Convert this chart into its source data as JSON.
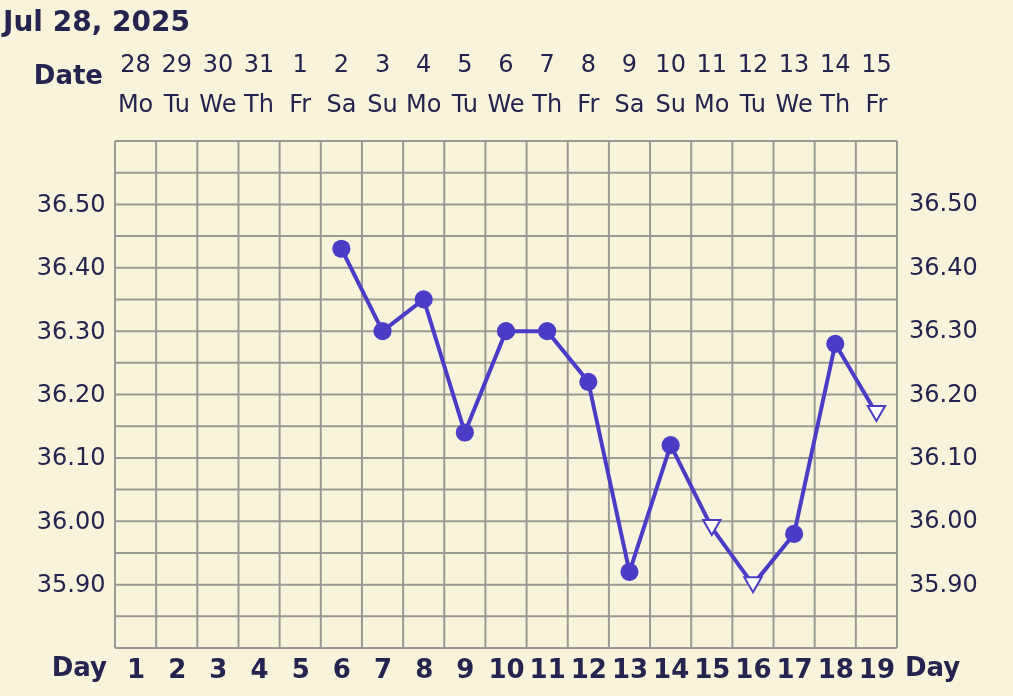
{
  "chart_data": {
    "type": "line",
    "title": "Jul 28, 2025",
    "xlabel": "Day",
    "x2label": "Date",
    "x": [
      6,
      7,
      8,
      9,
      10,
      11,
      12,
      13,
      14,
      15,
      16,
      17,
      18,
      19
    ],
    "series": [
      {
        "color": "#4a3cc6",
        "marker": "none",
        "values": [
          36.43,
          36.3,
          36.35,
          36.14,
          36.3,
          36.3,
          36.22,
          35.92,
          36.12,
          35.99,
          35.9,
          35.98,
          36.28,
          36.17
        ]
      },
      {
        "type": "scatter",
        "color": "#4a3cc6",
        "marker": "circle",
        "values": [
          36.43,
          36.3,
          36.35,
          36.14,
          36.3,
          36.3,
          36.22,
          35.92,
          36.12,
          null,
          null,
          35.98,
          36.28,
          null
        ]
      },
      {
        "type": "scatter",
        "color": "#4a3cc6",
        "marker": "triangle",
        "values": [
          null,
          null,
          null,
          null,
          null,
          null,
          null,
          null,
          null,
          35.99,
          35.9,
          null,
          null,
          36.17
        ]
      }
    ],
    "xlim": [
      0.5,
      19.5
    ],
    "xticks": [
      {
        "value": 0.5,
        "label": null
      },
      1,
      {
        "value": 1.5,
        "label": null
      },
      2,
      {
        "value": 2.5,
        "label": null
      },
      3,
      {
        "value": 3.5,
        "label": null
      },
      4,
      {
        "value": 4.5,
        "label": null
      },
      5,
      {
        "value": 5.5,
        "label": null
      },
      6,
      {
        "value": 6.5,
        "label": null
      },
      7,
      {
        "value": 7.5,
        "label": null
      },
      8,
      {
        "value": 8.5,
        "label": null
      },
      9,
      {
        "value": 9.5,
        "label": null
      },
      10,
      {
        "value": 10.5,
        "label": null
      },
      11,
      {
        "value": 11.5,
        "label": null
      },
      12,
      {
        "value": 12.5,
        "label": null
      },
      13,
      {
        "value": 13.5,
        "label": null
      },
      14,
      {
        "value": 14.5,
        "label": null
      },
      15,
      {
        "value": 15.5,
        "label": null
      },
      16,
      {
        "value": 16.5,
        "label": null
      },
      17,
      {
        "value": 17.5,
        "label": null
      },
      18,
      {
        "value": 18.5,
        "label": null
      },
      19,
      {
        "value": 19.5,
        "label": null
      }
    ],
    "x2lim": [
      "2025-07-27T12:00",
      "2025-08-15T12:00"
    ],
    "x2ticks": [
      {
        "value": "2025-07-28",
        "label": "28 Mo"
      },
      {
        "value": "2025-07-29",
        "label": "29 Tu"
      },
      {
        "value": "2025-07-30",
        "label": "30 We"
      },
      {
        "value": "2025-07-31",
        "label": "31 Th"
      },
      {
        "value": "2025-08-01",
        "label": "1 Fr"
      },
      {
        "value": "2025-08-02",
        "label": "2 Sa"
      },
      {
        "value": "2025-08-03",
        "label": "3 Su"
      },
      {
        "value": "2025-08-04",
        "label": "4 Mo"
      },
      {
        "value": "2025-08-05",
        "label": "5 Tu"
      },
      {
        "value": "2025-08-06",
        "label": "6 We"
      },
      {
        "value": "2025-08-07",
        "label": "7 Th"
      },
      {
        "value": "2025-08-08",
        "label": "8 Fr"
      },
      {
        "value": "2025-08-09",
        "label": "9 Sa"
      },
      {
        "value": "2025-08-10",
        "label": "10 Su"
      },
      {
        "value": "2025-08-11",
        "label": "11 Mo"
      },
      {
        "value": "2025-08-12",
        "label": "12 Tu"
      },
      {
        "value": "2025-08-13",
        "label": "13 We"
      },
      {
        "value": "2025-08-14",
        "label": "14 Th"
      },
      {
        "value": "2025-08-15",
        "label": "15 Fr"
      }
    ],
    "ylim": [
      35.8,
      36.6
    ],
    "yticks": [
      {
        "value": 35.8,
        "label": null
      },
      {
        "value": 35.85,
        "label": null
      },
      {
        "value": 35.9,
        "label": "35.90"
      },
      {
        "value": 35.95,
        "label": null
      },
      {
        "value": 36.0,
        "label": "36.00"
      },
      {
        "value": 36.05,
        "label": null
      },
      {
        "value": 36.1,
        "label": "36.10"
      },
      {
        "value": 36.15,
        "label": null
      },
      {
        "value": 36.2,
        "label": "36.20"
      },
      {
        "value": 36.25,
        "label": null
      },
      {
        "value": 36.3,
        "label": "36.30"
      },
      {
        "value": 36.35,
        "label": null
      },
      {
        "value": 36.4,
        "label": "36.40"
      },
      {
        "value": 36.45,
        "label": null
      },
      {
        "value": 36.5,
        "label": "36.50"
      },
      {
        "value": 36.55,
        "label": null
      },
      {
        "value": 36.6,
        "label": null
      }
    ],
    "y2lim": [
      35.8,
      36.6
    ],
    "y2ticks": [
      {
        "value": 35.9,
        "label": "35.90"
      },
      {
        "value": 36.0,
        "label": "36.00"
      },
      {
        "value": 36.1,
        "label": "36.10"
      },
      {
        "value": 36.2,
        "label": "36.20"
      },
      {
        "value": 36.3,
        "label": "36.30"
      },
      {
        "value": 36.4,
        "label": "36.40"
      },
      {
        "value": 36.5,
        "label": "36.50"
      }
    ],
    "grid": true
  }
}
